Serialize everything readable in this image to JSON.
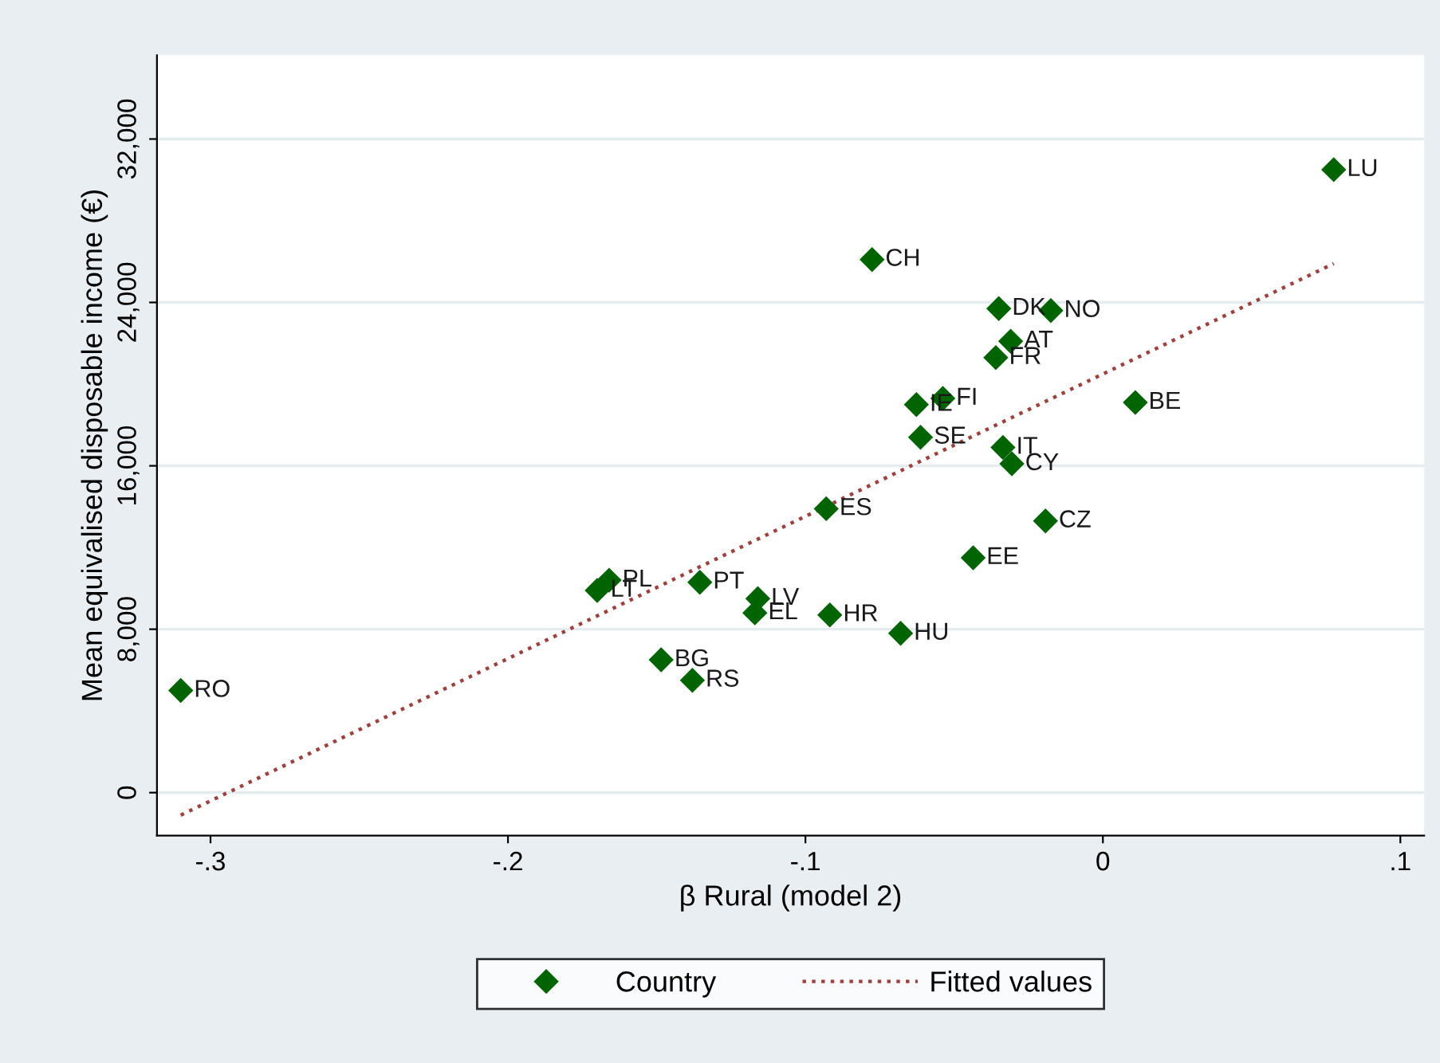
{
  "chart_data": {
    "type": "line",
    "xlabel": "β Rural (model 2)",
    "ylabel": "Mean equivalised disposable income (€)",
    "xlim": [
      -0.318,
      0.108
    ],
    "xticks": [
      {
        "value": -0.3,
        "label": "-.3"
      },
      {
        "value": -0.2,
        "label": "-.2"
      },
      {
        "value": -0.1,
        "label": "-.1"
      },
      0,
      {
        "value": 0.1,
        "label": ".1"
      }
    ],
    "ylim": [
      -2100,
      36100
    ],
    "yticks": [
      0,
      {
        "value": 8000,
        "label": "8,000"
      },
      {
        "value": 16000,
        "label": "16,000"
      },
      {
        "value": 24000,
        "label": "24,000"
      },
      {
        "value": 32000,
        "label": "32,000"
      }
    ],
    "grid": "y",
    "legend": "bottom",
    "series": [
      {
        "name": "Country",
        "type": "scatter",
        "color": "#006400",
        "marker": "diamond",
        "x": [
          -0.31,
          -0.17,
          -0.166,
          -0.1355,
          -0.116,
          -0.117,
          -0.1485,
          -0.138,
          0.0776,
          -0.0776,
          -0.035,
          -0.0175,
          -0.031,
          -0.036,
          -0.0627,
          -0.0538,
          0.0109,
          -0.0613,
          -0.0336,
          -0.0306,
          -0.093,
          -0.0193,
          -0.0436,
          -0.0918,
          -0.068
        ],
        "values": [
          5000,
          9900,
          10400,
          10300,
          9500,
          8800,
          6500,
          5500,
          30500,
          26100,
          23700,
          23600,
          22100,
          21300,
          19000,
          19300,
          19100,
          17400,
          16900,
          16100,
          13900,
          13300,
          11500,
          8700,
          7800
        ],
        "value_labels": [
          "RO",
          "LT",
          "PL",
          "PT",
          "LV",
          "EL",
          "BG",
          "RS",
          "LU",
          "CH",
          "DK",
          "NO",
          "AT",
          "FR",
          "IE",
          "FI",
          "BE",
          "SE",
          "IT",
          "CY",
          "ES",
          "CZ",
          "EE",
          "HR",
          "HU"
        ]
      },
      {
        "name": "Fitted values",
        "color": "#a0403e",
        "line_style": "dotted",
        "marker": "none",
        "x": [
          -0.31,
          0.0776
        ],
        "values": [
          -1100,
          25900
        ]
      }
    ]
  }
}
